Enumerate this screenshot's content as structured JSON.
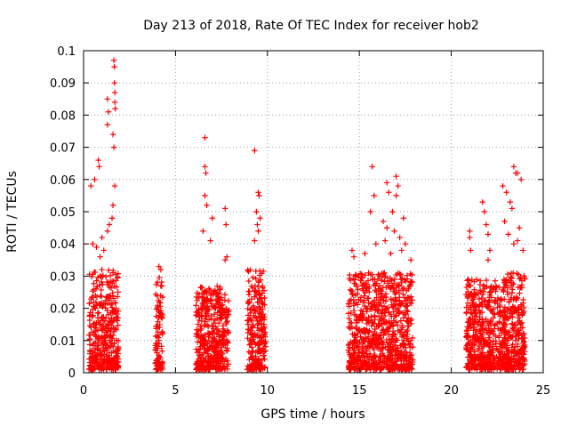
{
  "chart_data": {
    "type": "scatter",
    "title": "Day 213 of 2018, Rate Of TEC Index for receiver hob2",
    "xlabel": "GPS time / hours",
    "ylabel": "ROTI / TECUs",
    "xlim": [
      0,
      25
    ],
    "ylim": [
      0,
      0.1
    ],
    "xticks": [
      0,
      5,
      10,
      15,
      20,
      25
    ],
    "xtick_labels": [
      "0",
      "5",
      "10",
      "15",
      "20",
      "25"
    ],
    "yticks": [
      0,
      0.01,
      0.02,
      0.03,
      0.04,
      0.05,
      0.06,
      0.07,
      0.08,
      0.09,
      0.1
    ],
    "ytick_labels": [
      "0",
      "0.01",
      "0.02",
      "0.03",
      "0.04",
      "0.05",
      "0.06",
      "0.07",
      "0.08",
      "0.09",
      "0.1"
    ],
    "grid": true,
    "marker": "+",
    "marker_color": "#ff0000",
    "clusters": [
      {
        "name": "00.3-01.9h",
        "x_range": [
          0.3,
          1.9
        ],
        "dense_max": 0.032,
        "peaks": [
          [
            0.4,
            0.058
          ],
          [
            0.6,
            0.06
          ],
          [
            0.8,
            0.066
          ],
          [
            0.85,
            0.064
          ],
          [
            1.3,
            0.085
          ],
          [
            1.35,
            0.081
          ],
          [
            1.3,
            0.077
          ],
          [
            1.65,
            0.097
          ],
          [
            1.67,
            0.095
          ],
          [
            1.68,
            0.09
          ],
          [
            1.7,
            0.087
          ],
          [
            1.7,
            0.084
          ],
          [
            1.72,
            0.082
          ],
          [
            1.6,
            0.074
          ],
          [
            1.65,
            0.07
          ],
          [
            1.7,
            0.058
          ],
          [
            1.6,
            0.052
          ],
          [
            1.55,
            0.048
          ],
          [
            1.4,
            0.046
          ],
          [
            1.3,
            0.044
          ],
          [
            1.0,
            0.042
          ],
          [
            0.9,
            0.036
          ],
          [
            1.1,
            0.038
          ],
          [
            0.5,
            0.04
          ],
          [
            0.7,
            0.039
          ]
        ]
      },
      {
        "name": "03.9-04.3h",
        "x_range": [
          3.9,
          4.3
        ],
        "dense_max": 0.03,
        "peaks": [
          [
            4.1,
            0.033
          ],
          [
            4.2,
            0.032
          ]
        ]
      },
      {
        "name": "06.1-07.9h",
        "x_range": [
          6.1,
          7.9
        ],
        "dense_max": 0.027,
        "peaks": [
          [
            6.6,
            0.073
          ],
          [
            6.6,
            0.064
          ],
          [
            6.65,
            0.062
          ],
          [
            6.6,
            0.055
          ],
          [
            6.7,
            0.052
          ],
          [
            6.5,
            0.044
          ],
          [
            7.0,
            0.048
          ],
          [
            7.7,
            0.051
          ],
          [
            7.75,
            0.046
          ],
          [
            7.8,
            0.036
          ],
          [
            7.7,
            0.035
          ],
          [
            6.9,
            0.041
          ]
        ]
      },
      {
        "name": "08.9-09.9h",
        "x_range": [
          8.9,
          9.9
        ],
        "dense_max": 0.032,
        "peaks": [
          [
            9.3,
            0.069
          ],
          [
            9.5,
            0.056
          ],
          [
            9.55,
            0.055
          ],
          [
            9.4,
            0.05
          ],
          [
            9.6,
            0.048
          ],
          [
            9.45,
            0.046
          ],
          [
            9.5,
            0.044
          ],
          [
            9.3,
            0.041
          ]
        ]
      },
      {
        "name": "14.4-16.0h",
        "x_range": [
          14.4,
          16.0
        ],
        "dense_max": 0.031,
        "peaks": [
          [
            15.7,
            0.064
          ],
          [
            15.8,
            0.055
          ],
          [
            15.6,
            0.05
          ],
          [
            14.6,
            0.038
          ],
          [
            14.7,
            0.036
          ],
          [
            15.3,
            0.037
          ],
          [
            15.9,
            0.04
          ]
        ]
      },
      {
        "name": "16.0-17.9h",
        "x_range": [
          16.0,
          17.9
        ],
        "dense_max": 0.031,
        "peaks": [
          [
            17.0,
            0.061
          ],
          [
            17.1,
            0.058
          ],
          [
            16.5,
            0.059
          ],
          [
            16.6,
            0.056
          ],
          [
            17.0,
            0.055
          ],
          [
            16.8,
            0.05
          ],
          [
            17.4,
            0.048
          ],
          [
            16.3,
            0.047
          ],
          [
            16.5,
            0.045
          ],
          [
            16.9,
            0.044
          ],
          [
            17.2,
            0.042
          ],
          [
            16.4,
            0.041
          ],
          [
            17.5,
            0.04
          ],
          [
            17.3,
            0.038
          ],
          [
            17.8,
            0.035
          ],
          [
            16.7,
            0.037
          ]
        ]
      },
      {
        "name": "20.8-22.5h",
        "x_range": [
          20.8,
          22.5
        ],
        "dense_max": 0.029,
        "peaks": [
          [
            21.7,
            0.053
          ],
          [
            21.8,
            0.05
          ],
          [
            21.0,
            0.044
          ],
          [
            21.0,
            0.042
          ],
          [
            22.0,
            0.043
          ],
          [
            21.9,
            0.046
          ],
          [
            22.1,
            0.038
          ],
          [
            22.0,
            0.035
          ],
          [
            21.05,
            0.038
          ]
        ]
      },
      {
        "name": "22.5-24.0h",
        "x_range": [
          22.5,
          24.0
        ],
        "dense_max": 0.031,
        "peaks": [
          [
            23.4,
            0.064
          ],
          [
            23.5,
            0.062
          ],
          [
            23.6,
            0.062
          ],
          [
            22.8,
            0.058
          ],
          [
            23.0,
            0.056
          ],
          [
            23.8,
            0.06
          ],
          [
            23.2,
            0.053
          ],
          [
            23.3,
            0.051
          ],
          [
            22.9,
            0.047
          ],
          [
            23.7,
            0.045
          ],
          [
            23.1,
            0.043
          ],
          [
            23.6,
            0.041
          ],
          [
            23.4,
            0.04
          ],
          [
            23.9,
            0.038
          ]
        ]
      }
    ]
  }
}
